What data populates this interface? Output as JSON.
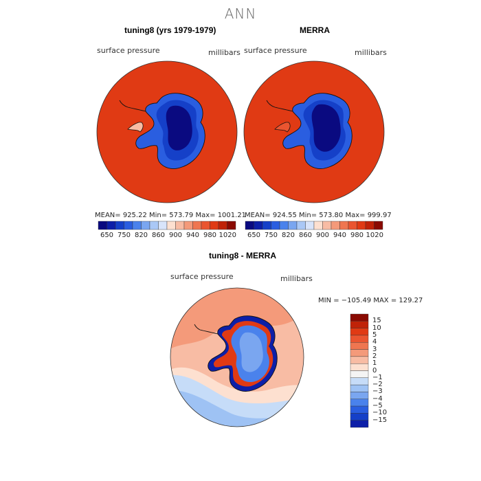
{
  "page": {
    "title": "ANN",
    "panel1_title": "tuning8 (yrs 1979-1979)",
    "panel2_title": "MERRA",
    "panel3_title": "tuning8 - MERRA",
    "variable": "surface pressure",
    "units": "millibars"
  },
  "chart_data": [
    {
      "type": "heatmap",
      "projection": "south-polar-stereographic",
      "title": "tuning8 (yrs 1979-1979)",
      "variable": "surface pressure",
      "units": "millibars",
      "stats": "MEAN= 925.22   Min= 573.79   Max= 1001.21",
      "mean": 925.22,
      "min": 573.79,
      "max": 1001.21,
      "colorbar": {
        "orientation": "horizontal",
        "ticks": [
          "650",
          "750",
          "820",
          "860",
          "900",
          "940",
          "980",
          "1020"
        ],
        "colors": [
          "#0a0a80",
          "#0d1fa8",
          "#1540c8",
          "#2a5ee0",
          "#4a82ec",
          "#7aa6f0",
          "#aac8f6",
          "#d8e4fa",
          "#fde0d0",
          "#f8bca4",
          "#f49a7a",
          "#ef7650",
          "#ea5530",
          "#e03a14",
          "#c02208",
          "#8a0a02"
        ]
      }
    },
    {
      "type": "heatmap",
      "projection": "south-polar-stereographic",
      "title": "MERRA",
      "variable": "surface pressure",
      "units": "millibars",
      "stats": "MEAN= 924.55   Min= 573.80   Max= 999.97",
      "mean": 924.55,
      "min": 573.8,
      "max": 999.97,
      "colorbar": {
        "orientation": "horizontal",
        "ticks": [
          "650",
          "750",
          "820",
          "860",
          "900",
          "940",
          "980",
          "1020"
        ],
        "colors": [
          "#0a0a80",
          "#0d1fa8",
          "#1540c8",
          "#2a5ee0",
          "#4a82ec",
          "#7aa6f0",
          "#aac8f6",
          "#d8e4fa",
          "#fde0d0",
          "#f8bca4",
          "#f49a7a",
          "#ef7650",
          "#ea5530",
          "#e03a14",
          "#c02208",
          "#8a0a02"
        ]
      }
    },
    {
      "type": "heatmap",
      "projection": "south-polar-stereographic",
      "title": "tuning8 - MERRA",
      "variable": "surface pressure",
      "units": "millibars",
      "stats": "MIN = −105.49  MAX = 129.27",
      "min": -105.49,
      "max": 129.27,
      "colorbar": {
        "orientation": "vertical",
        "ticks": [
          "15",
          "10",
          "5",
          "4",
          "3",
          "2",
          "1",
          "0",
          "−1",
          "−2",
          "−3",
          "−4",
          "−5",
          "−10",
          "−15"
        ],
        "colors": [
          "#8a0a02",
          "#c02208",
          "#e03a14",
          "#ea5530",
          "#ef7650",
          "#f49a7a",
          "#f8bca4",
          "#fde0d0",
          "#f4f4f4",
          "#c6dcf8",
          "#9ec2f4",
          "#7aa6f0",
          "#4a82ec",
          "#2a5ee0",
          "#1540c8",
          "#0d1fa8"
        ]
      }
    }
  ]
}
